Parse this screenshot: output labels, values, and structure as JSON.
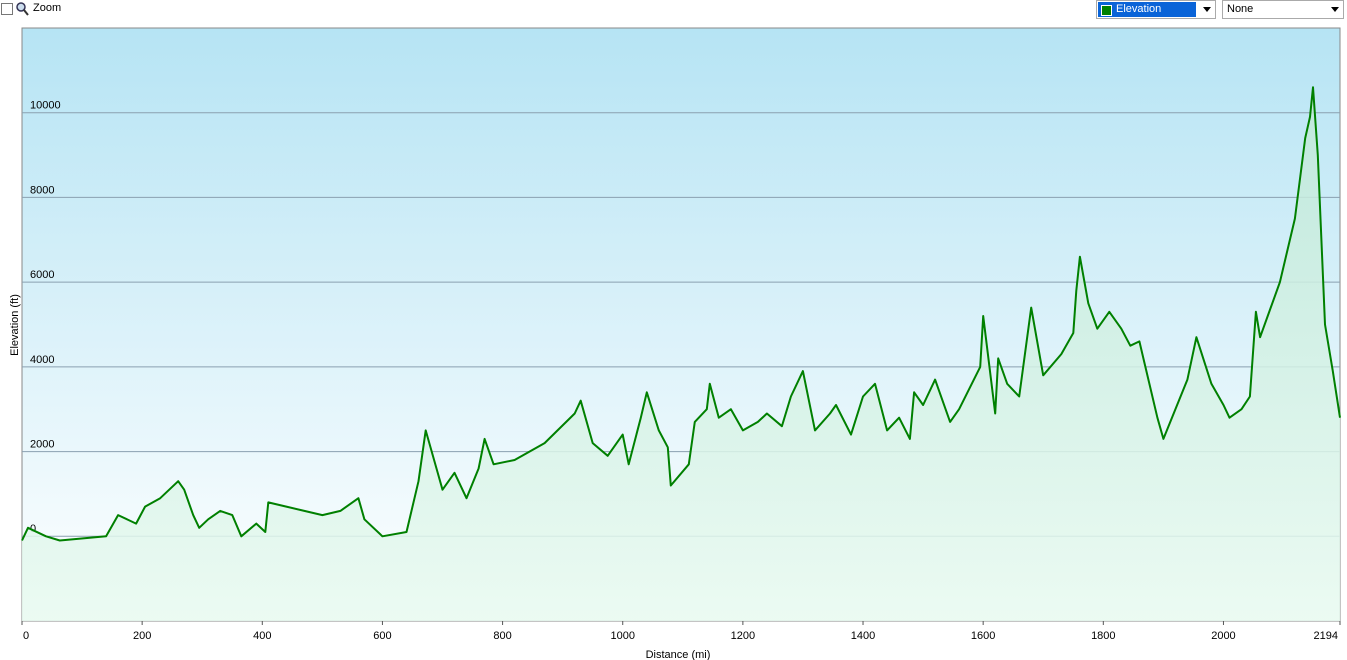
{
  "ui": {
    "zoom": "Zoom",
    "overlay": "None"
  },
  "chart_data": {
    "type": "area",
    "xlabel": "Distance  (mi)",
    "ylabel": "Elevation (ft)",
    "xlim": [
      0,
      2194
    ],
    "ylim": [
      -2000,
      12000
    ],
    "xticks": [
      0,
      200,
      400,
      600,
      800,
      1000,
      1200,
      1400,
      1600,
      1800,
      2000,
      2194
    ],
    "yticks": [
      0,
      2000,
      4000,
      6000,
      8000,
      10000
    ],
    "grid": true,
    "x": [
      0,
      10,
      40,
      63,
      140,
      160,
      190,
      205,
      230,
      260,
      270,
      285,
      295,
      310,
      330,
      350,
      365,
      390,
      405,
      410,
      440,
      470,
      500,
      530,
      560,
      570,
      600,
      640,
      660,
      672,
      690,
      700,
      720,
      740,
      760,
      770,
      785,
      820,
      870,
      920,
      930,
      950,
      975,
      1000,
      1010,
      1030,
      1040,
      1060,
      1075,
      1080,
      1110,
      1120,
      1140,
      1145,
      1160,
      1180,
      1200,
      1225,
      1240,
      1265,
      1280,
      1300,
      1320,
      1345,
      1355,
      1380,
      1400,
      1420,
      1440,
      1460,
      1478,
      1485,
      1500,
      1520,
      1545,
      1560,
      1595,
      1600,
      1620,
      1625,
      1640,
      1660,
      1680,
      1700,
      1730,
      1750,
      1755,
      1761,
      1775,
      1790,
      1810,
      1830,
      1845,
      1860,
      1870,
      1890,
      1900,
      1920,
      1940,
      1955,
      1980,
      2000,
      2010,
      2030,
      2044,
      2054,
      2061,
      2094,
      2119,
      2136,
      2144,
      2149,
      2157,
      2169,
      2182,
      2194
    ],
    "series": [
      {
        "name": "Elevation",
        "color": "#008000",
        "values": [
          -100,
          200,
          0,
          -100,
          0,
          500,
          300,
          700,
          900,
          1300,
          1100,
          500,
          200,
          400,
          600,
          500,
          0,
          300,
          100,
          800,
          700,
          600,
          500,
          600,
          900,
          400,
          0,
          100,
          1300,
          2500,
          1600,
          1100,
          1500,
          900,
          1600,
          2300,
          1700,
          1800,
          2200,
          2900,
          3200,
          2200,
          1900,
          2400,
          1700,
          2800,
          3400,
          2500,
          2100,
          1200,
          1700,
          2700,
          3000,
          3600,
          2800,
          3000,
          2500,
          2700,
          2900,
          2600,
          3300,
          3900,
          2500,
          2900,
          3100,
          2400,
          3300,
          3600,
          2500,
          2800,
          2300,
          3400,
          3100,
          3700,
          2700,
          3000,
          4000,
          5200,
          2900,
          4200,
          3600,
          3300,
          5400,
          3800,
          4300,
          4800,
          5800,
          6600,
          5500,
          4900,
          5300,
          4900,
          4500,
          4600,
          4000,
          2800,
          2300,
          3000,
          3700,
          4700,
          3600,
          3100,
          2800,
          3000,
          3300,
          5300,
          4700,
          6000,
          7500,
          9400,
          9900,
          10600,
          9000,
          5000,
          3900,
          2800
        ]
      }
    ]
  }
}
